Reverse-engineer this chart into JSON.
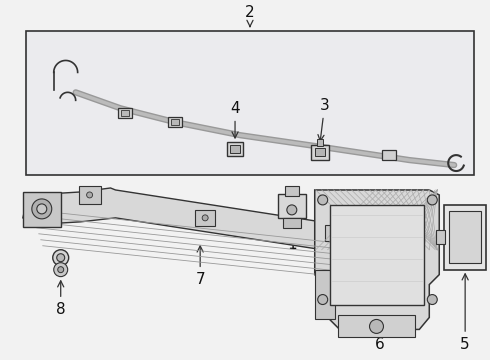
{
  "bg_color": "#f2f2f2",
  "box_bg": "#e8eaed",
  "white_bg": "#ffffff",
  "line_color": "#333333",
  "gray_line": "#888888",
  "light_gray": "#cccccc",
  "mid_gray": "#aaaaaa",
  "figsize": [
    4.9,
    3.6
  ],
  "dpi": 100,
  "label_fs": 11
}
